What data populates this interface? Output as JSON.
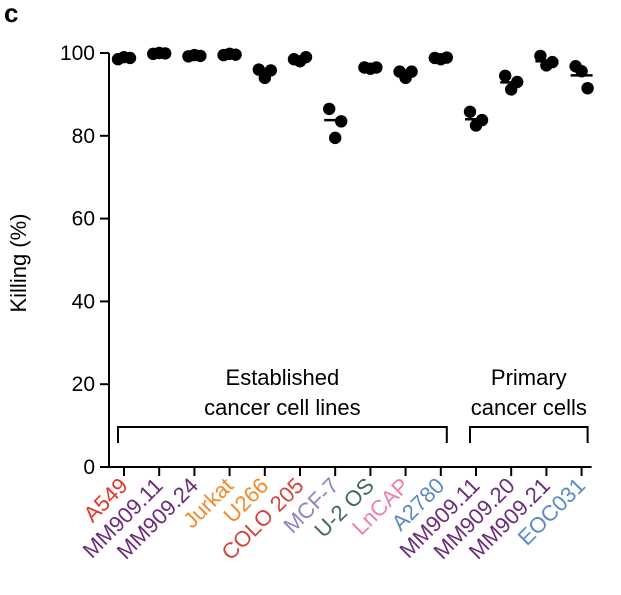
{
  "panel_label": "c",
  "chart_data": {
    "type": "scatter",
    "ylabel": "Killing (%)",
    "xlabel": "",
    "ylim": [
      0,
      100
    ],
    "yticks": [
      0,
      20,
      40,
      60,
      80,
      100
    ],
    "grid": false,
    "categories": [
      {
        "label": "A549",
        "color": "#e2382b",
        "points": [
          98.5,
          99.0,
          98.8
        ],
        "mean": 98.8
      },
      {
        "label": "MM909.11",
        "color": "#6b2d7b",
        "points": [
          99.8,
          100.0,
          99.9
        ],
        "mean": 99.9
      },
      {
        "label": "MM909.24",
        "color": "#6b2d7b",
        "points": [
          99.2,
          99.5,
          99.3
        ],
        "mean": 99.3
      },
      {
        "label": "Jurkat",
        "color": "#f08a2c",
        "points": [
          99.5,
          99.8,
          99.6
        ],
        "mean": 99.6
      },
      {
        "label": "U266",
        "color": "#f08a2c",
        "points": [
          96.0,
          94.0,
          95.8
        ],
        "mean": 95.3
      },
      {
        "label": "COLO 205",
        "color": "#d2453f",
        "points": [
          98.5,
          98.0,
          99.0
        ],
        "mean": 98.5
      },
      {
        "label": "MCF-7",
        "color": "#8a86c2",
        "points": [
          86.5,
          79.5,
          83.5
        ],
        "mean": 83.8
      },
      {
        "label": "U-2 OS",
        "color": "#3e6b5b",
        "points": [
          96.5,
          96.2,
          96.5
        ],
        "mean": 96.4
      },
      {
        "label": "LnCAP",
        "color": "#e980b4",
        "points": [
          95.5,
          94.0,
          95.5
        ],
        "mean": 95.0
      },
      {
        "label": "A2780",
        "color": "#5b8ac6",
        "points": [
          98.8,
          98.5,
          98.9
        ],
        "mean": 98.7
      },
      {
        "label": "MM909.11",
        "color": "#6b2d7b",
        "points": [
          85.8,
          82.5,
          83.8
        ],
        "mean": 84.0
      },
      {
        "label": "MM909.20",
        "color": "#6b2d7b",
        "points": [
          94.5,
          91.2,
          93.0
        ],
        "mean": 92.9
      },
      {
        "label": "MM909.21",
        "color": "#6b2d7b",
        "points": [
          99.3,
          97.0,
          97.8
        ],
        "mean": 98.0
      },
      {
        "label": "EOC031",
        "color": "#5b8ac6",
        "points": [
          96.8,
          95.6,
          91.5
        ],
        "mean": 94.6
      }
    ],
    "groups": [
      {
        "lines": [
          "Established",
          "cancer cell lines"
        ],
        "from_index": 0,
        "to_index": 9
      },
      {
        "lines": [
          "Primary",
          "cancer cells"
        ],
        "from_index": 10,
        "to_index": 13
      }
    ]
  }
}
